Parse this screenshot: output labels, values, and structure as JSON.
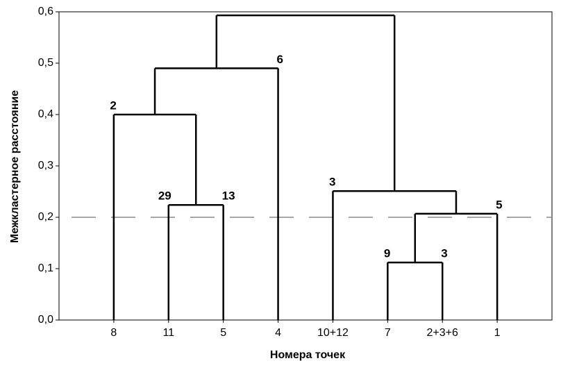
{
  "chart_data": {
    "type": "dendrogram",
    "y_label": "Межкластерное расстояние",
    "x_label": "Номера точек",
    "ylim": [
      0,
      0.6
    ],
    "yticks": [
      {
        "value": 0,
        "label": "0,0"
      },
      {
        "value": 0.1,
        "label": "0,1"
      },
      {
        "value": 0.2,
        "label": "0,2"
      },
      {
        "value": 0.3,
        "label": "0,3"
      },
      {
        "value": 0.4,
        "label": "0,4"
      },
      {
        "value": 0.5,
        "label": "0,5"
      },
      {
        "value": 0.6,
        "label": "0,6"
      }
    ],
    "cut_line": 0.2,
    "color": "#000000",
    "tree": {
      "height": 0.593,
      "children": [
        {
          "height": 0.49,
          "right_label": "6",
          "children": [
            {
              "height": 0.4,
              "left_label": "2",
              "children": [
                "8",
                {
                  "height": 0.224,
                  "left_label": "29",
                  "right_label": "13",
                  "children": [
                    "11",
                    "5"
                  ]
                }
              ]
            },
            "4"
          ]
        },
        {
          "height": 0.251,
          "left_label": "3",
          "children": [
            "10+12",
            {
              "height": 0.207,
              "right_label": "5",
              "children": [
                {
                  "height": 0.112,
                  "left_label": "9",
                  "right_label": "3",
                  "children": [
                    "7",
                    "2+3+6"
                  ]
                },
                "1"
              ]
            }
          ]
        }
      ]
    }
  }
}
